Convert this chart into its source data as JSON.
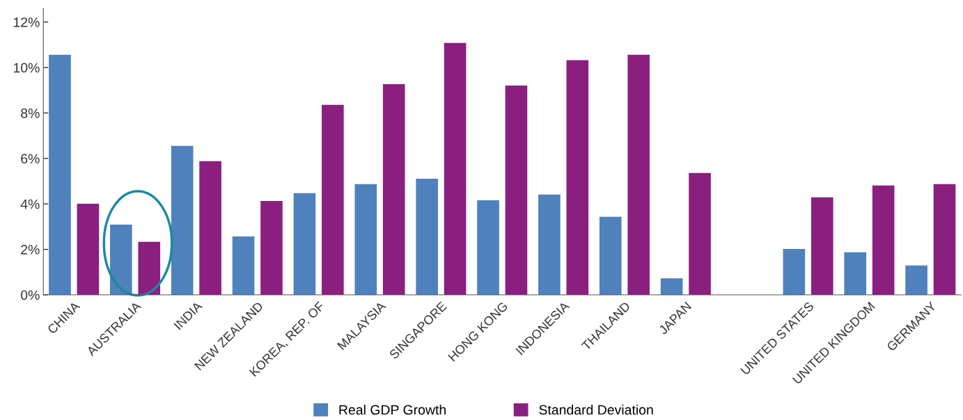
{
  "chart_data": {
    "type": "bar",
    "categories": [
      "CHINA",
      "AUSTRALIA",
      "INDIA",
      "NEW ZEALAND",
      "KOREA, REP. OF",
      "MALAYSIA",
      "SINGAPORE",
      "HONG KONG",
      "INDONESIA",
      "THAILAND",
      "JAPAN",
      null,
      "UNITED STATES",
      "UNITED KINGDOM",
      "GERMANY"
    ],
    "series": [
      {
        "name": "Real GDP Growth",
        "color": "#4f81bd",
        "values": [
          10.56,
          3.09,
          6.55,
          2.57,
          4.47,
          4.87,
          5.11,
          4.16,
          4.41,
          3.43,
          0.73,
          null,
          2.02,
          1.87,
          1.29
        ]
      },
      {
        "name": "Standard Deviation",
        "color": "#8b1f7f",
        "values": [
          4.01,
          2.33,
          5.88,
          4.13,
          8.36,
          9.27,
          11.08,
          9.21,
          10.32,
          10.56,
          5.36,
          null,
          4.29,
          4.81,
          4.87
        ]
      }
    ],
    "ylim": [
      0,
      12.6
    ],
    "yticks": [
      {
        "value": 0,
        "label": "0%"
      },
      {
        "value": 2,
        "label": "2%"
      },
      {
        "value": 4,
        "label": "4%"
      },
      {
        "value": 6,
        "label": "6%"
      },
      {
        "value": 8,
        "label": "8%"
      },
      {
        "value": 10,
        "label": "10%"
      },
      {
        "value": 12,
        "label": "12%"
      }
    ],
    "grid": false,
    "legend": "bottom"
  }
}
